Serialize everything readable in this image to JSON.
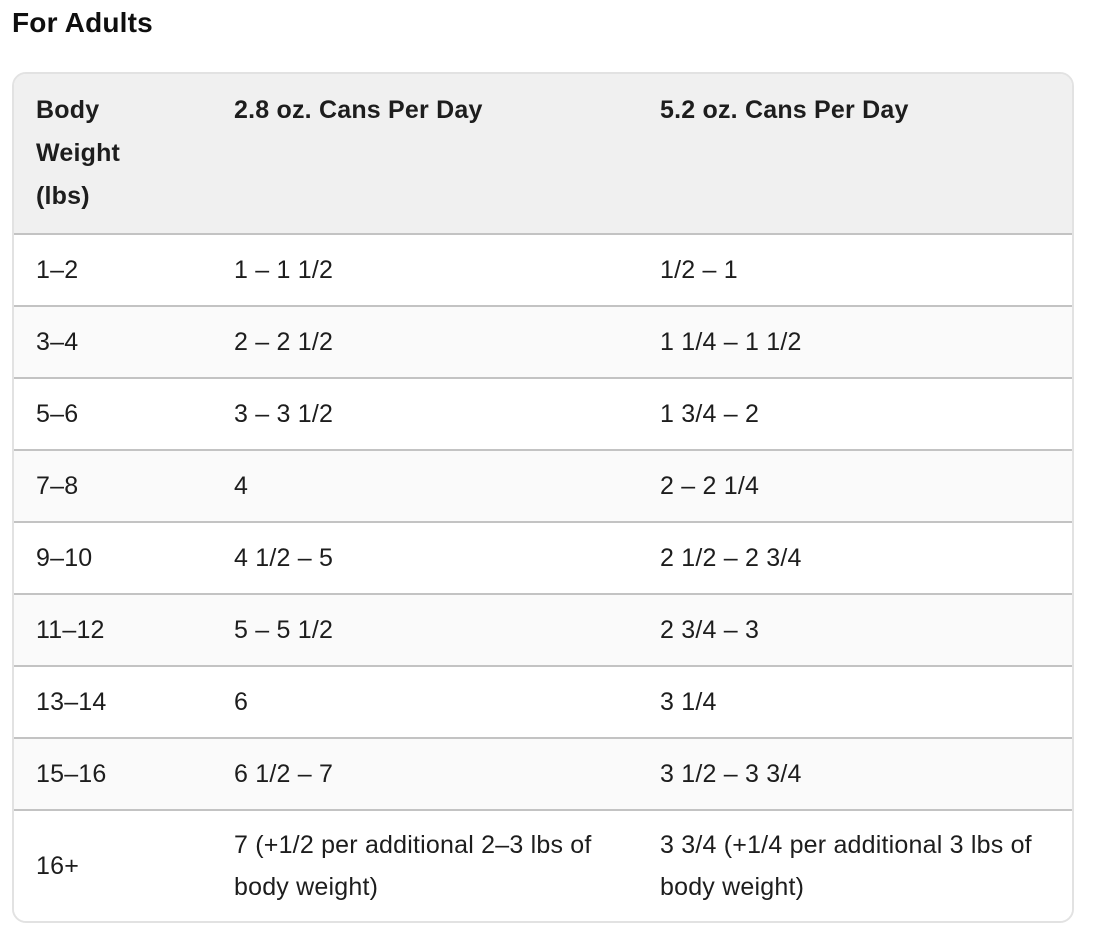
{
  "section": {
    "title": "For Adults"
  },
  "table": {
    "headers": [
      "Body Weight (lbs)",
      "2.8 oz. Cans Per Day",
      "5.2 oz. Cans Per Day"
    ],
    "rows": [
      [
        "1–2",
        "1 – 1 1/2",
        "1/2 – 1"
      ],
      [
        "3–4",
        "2 – 2 1/2",
        "1 1/4 – 1 1/2"
      ],
      [
        "5–6",
        "3 – 3 1/2",
        "1 3/4 – 2"
      ],
      [
        "7–8",
        "4",
        "2 – 2 1/4"
      ],
      [
        "9–10",
        "4 1/2 – 5",
        "2 1/2 – 2 3/4"
      ],
      [
        "11–12",
        "5 – 5 1/2",
        "2 3/4 – 3"
      ],
      [
        "13–14",
        "6",
        "3 1/4"
      ],
      [
        "15–16",
        "6 1/2 – 7",
        "3 1/2 – 3 3/4"
      ],
      [
        "16+",
        "7 (+1/2 per additional 2–3 lbs of body weight)",
        "3 3/4 (+1/4 per additional 3 lbs of body weight)"
      ]
    ]
  },
  "colors": {
    "header_bg": "#f0f0f0",
    "row_alt_bg": "#fafafa",
    "divider": "#c3c3c3",
    "border": "#e2e2e2",
    "text": "#1d1d1d",
    "title": "#0f0f0f"
  }
}
